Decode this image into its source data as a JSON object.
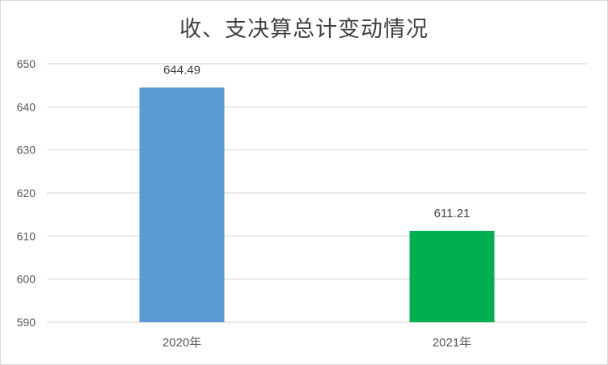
{
  "chart_data": {
    "type": "bar",
    "title": "收、支决算总计变动情况",
    "categories": [
      "2020年",
      "2021年"
    ],
    "values": [
      644.49,
      611.21
    ],
    "data_labels": [
      "644.49",
      "611.21"
    ],
    "bar_colors": [
      "#5b9bd5",
      "#00b050"
    ],
    "ylim": [
      590,
      650
    ],
    "y_ticks": [
      590,
      600,
      610,
      620,
      630,
      640,
      650
    ],
    "grid": true,
    "legend": "none",
    "xlabel": "",
    "ylabel": ""
  }
}
